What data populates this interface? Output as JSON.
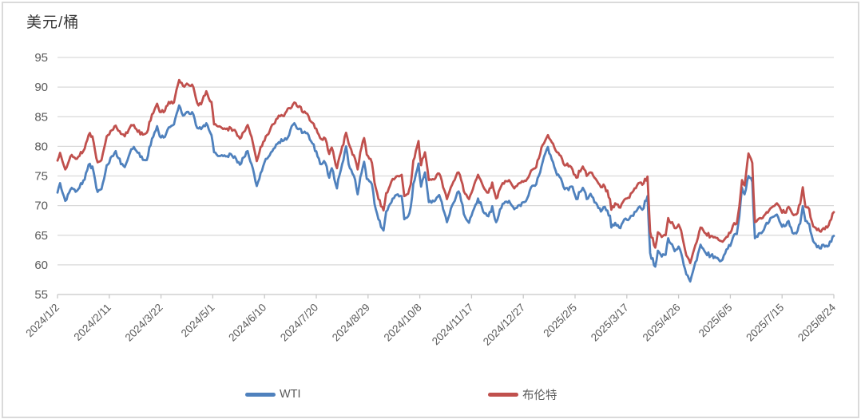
{
  "title": "美元/桶",
  "legend": [
    {
      "label": "WTI",
      "color": "#4F81BD"
    },
    {
      "label": "布伦特",
      "color": "#C0504D"
    }
  ],
  "colors": {
    "gridline": "#d9d9d9",
    "axis": "#c8c8c8",
    "tick_label": "#595959",
    "title_text": "#383838",
    "wti": "#4F81BD",
    "brent": "#C0504D"
  },
  "chart_data": {
    "type": "line",
    "title": "美元/桶",
    "ylabel": "美元/桶",
    "ylim": [
      55,
      95
    ],
    "y_ticks": [
      55,
      60,
      65,
      70,
      75,
      80,
      85,
      90,
      95
    ],
    "grid": true,
    "legend_position": "bottom",
    "x_is_daily_dates": true,
    "x_start_date": "2024/1/2",
    "x_total_days": 600,
    "x_tick_days": [
      0,
      40,
      80,
      120,
      160,
      200,
      240,
      280,
      320,
      360,
      400,
      440,
      480,
      520,
      560,
      600
    ],
    "x_tick_labels": [
      "2024/1/2",
      "2024/2/11",
      "2024/3/22",
      "2024/5/1",
      "2024/6/10",
      "2024/7/20",
      "2024/8/29",
      "2024/10/8",
      "2024/11/17",
      "2024/12/27",
      "2025/2/5",
      "2025/3/17",
      "2025/4/26",
      "2025/6/5",
      "2025/7/15",
      "2025/8/24"
    ],
    "keypoint_days": [
      0,
      2,
      6,
      10,
      15,
      21,
      24,
      27,
      31,
      34,
      38,
      45,
      49,
      52,
      56,
      59,
      64,
      69,
      73,
      77,
      79,
      83,
      86,
      90,
      94,
      97,
      100,
      105,
      108,
      111,
      115,
      119,
      121,
      126,
      130,
      134,
      138,
      141,
      147,
      150,
      154,
      157,
      161,
      164,
      171,
      175,
      178,
      181,
      183,
      187,
      190,
      194,
      197,
      201,
      204,
      207,
      210,
      212,
      216,
      218,
      223,
      225,
      230,
      232,
      234,
      237,
      239,
      243,
      245,
      248,
      252,
      254,
      259,
      263,
      266,
      268,
      271,
      273,
      275,
      279,
      281,
      284,
      287,
      291,
      295,
      301,
      304,
      308,
      310,
      315,
      318,
      322,
      325,
      330,
      333,
      336,
      339,
      344,
      349,
      353,
      357,
      361,
      364,
      366,
      370,
      374,
      377,
      379,
      382,
      385,
      389,
      391,
      395,
      398,
      401,
      406,
      409,
      412,
      416,
      420,
      423,
      427,
      428,
      431,
      434,
      437,
      440,
      444,
      449,
      452,
      456,
      458,
      462,
      464,
      467,
      470,
      472,
      477,
      480,
      482,
      486,
      489,
      492,
      497,
      501,
      505,
      508,
      511,
      514,
      517,
      520,
      522,
      525,
      527,
      529,
      531,
      534,
      537,
      538,
      539,
      542,
      545,
      548,
      552,
      556,
      559,
      562,
      565,
      568,
      571,
      574,
      576,
      578,
      581,
      584,
      589,
      592,
      595,
      598,
      600
    ],
    "series": [
      {
        "name": "WTI",
        "color": "#4F81BD",
        "values": [
          72.2,
          73.8,
          70.8,
          72.7,
          72.5,
          74.4,
          76.9,
          76.6,
          72.3,
          72.8,
          76.8,
          79.2,
          77.0,
          76.5,
          78.9,
          79.9,
          78.2,
          77.7,
          81.3,
          83.4,
          81.7,
          81.6,
          83.2,
          83.7,
          86.9,
          85.2,
          85.8,
          85.4,
          83.1,
          82.9,
          83.9,
          81.9,
          79.0,
          78.4,
          78.3,
          78.7,
          77.9,
          76.9,
          79.2,
          77.0,
          73.3,
          75.5,
          77.9,
          78.5,
          80.7,
          81.0,
          81.5,
          83.4,
          83.9,
          83.0,
          82.3,
          81.9,
          80.5,
          78.3,
          77.0,
          77.2,
          74.7,
          76.3,
          72.9,
          75.2,
          80.0,
          77.0,
          74.4,
          71.9,
          74.8,
          77.4,
          74.5,
          73.6,
          70.3,
          67.7,
          65.8,
          69.0,
          71.2,
          71.9,
          71.6,
          67.7,
          68.2,
          69.8,
          73.7,
          77.1,
          73.2,
          75.6,
          70.6,
          70.7,
          71.8,
          67.2,
          69.5,
          71.5,
          72.4,
          68.1,
          67.1,
          69.5,
          71.2,
          68.7,
          68.2,
          69.9,
          67.2,
          70.3,
          70.8,
          69.4,
          70.1,
          70.6,
          71.7,
          73.1,
          73.6,
          76.6,
          78.8,
          79.9,
          77.8,
          75.9,
          74.6,
          73.2,
          72.6,
          73.2,
          71.1,
          73.0,
          71.1,
          72.0,
          70.5,
          69.0,
          69.8,
          68.3,
          66.3,
          67.1,
          66.3,
          67.2,
          67.6,
          68.3,
          69.7,
          69.3,
          71.6,
          62.0,
          59.7,
          62.4,
          61.4,
          61.7,
          64.5,
          62.3,
          63.1,
          62.0,
          58.4,
          57.2,
          59.6,
          63.4,
          62.0,
          61.6,
          61.4,
          60.9,
          60.9,
          62.6,
          63.2,
          64.6,
          65.2,
          68.2,
          73.0,
          71.9,
          75.0,
          74.0,
          68.5,
          64.5,
          65.3,
          65.6,
          67.1,
          68.0,
          68.5,
          66.9,
          66.5,
          67.4,
          65.4,
          65.3,
          67.0,
          69.9,
          67.4,
          66.9,
          64.0,
          62.8,
          63.4,
          63.1,
          63.9,
          64.9
        ]
      },
      {
        "name": "布伦特",
        "color": "#C0504D",
        "values": [
          77.6,
          78.9,
          76.1,
          78.3,
          77.9,
          79.6,
          81.9,
          81.7,
          77.3,
          77.7,
          81.7,
          83.5,
          82.1,
          81.7,
          83.2,
          83.6,
          82.0,
          82.3,
          85.4,
          87.2,
          85.8,
          86.0,
          87.5,
          87.4,
          91.2,
          90.2,
          90.6,
          90.0,
          87.3,
          87.1,
          89.3,
          87.5,
          83.7,
          83.3,
          82.9,
          83.1,
          82.4,
          81.3,
          83.6,
          81.6,
          77.5,
          79.9,
          81.7,
          82.6,
          85.2,
          85.1,
          86.4,
          86.6,
          87.4,
          86.8,
          85.7,
          85.1,
          84.0,
          82.3,
          81.2,
          81.3,
          78.7,
          79.8,
          76.3,
          78.3,
          82.3,
          80.5,
          77.9,
          76.1,
          79.0,
          81.4,
          78.6,
          77.2,
          73.9,
          71.1,
          69.2,
          72.1,
          74.5,
          75.0,
          75.2,
          71.6,
          72.0,
          73.6,
          77.6,
          80.9,
          76.8,
          79.0,
          74.3,
          74.4,
          75.4,
          71.1,
          73.1,
          75.0,
          75.6,
          72.0,
          71.1,
          73.5,
          75.2,
          72.8,
          72.2,
          73.9,
          71.2,
          73.8,
          74.3,
          72.9,
          73.8,
          74.2,
          74.8,
          75.9,
          76.5,
          79.8,
          81.0,
          81.9,
          80.7,
          79.3,
          78.4,
          77.1,
          76.6,
          76.1,
          74.7,
          76.6,
          75.0,
          75.6,
          74.5,
          73.1,
          73.2,
          71.1,
          69.3,
          70.4,
          69.7,
          70.6,
          71.2,
          72.2,
          73.8,
          73.5,
          74.9,
          65.6,
          62.9,
          65.5,
          64.7,
          65.0,
          67.9,
          66.2,
          66.8,
          65.8,
          61.6,
          60.3,
          62.6,
          66.3,
          65.3,
          64.9,
          64.7,
          64.2,
          63.9,
          64.7,
          65.4,
          66.6,
          67.0,
          69.9,
          74.3,
          73.4,
          78.8,
          77.2,
          71.5,
          67.2,
          67.8,
          67.9,
          68.9,
          69.7,
          70.4,
          69.3,
          68.8,
          69.8,
          68.6,
          68.5,
          70.3,
          73.1,
          69.8,
          69.4,
          66.5,
          65.7,
          66.2,
          66.3,
          67.7,
          68.9
        ]
      }
    ]
  }
}
